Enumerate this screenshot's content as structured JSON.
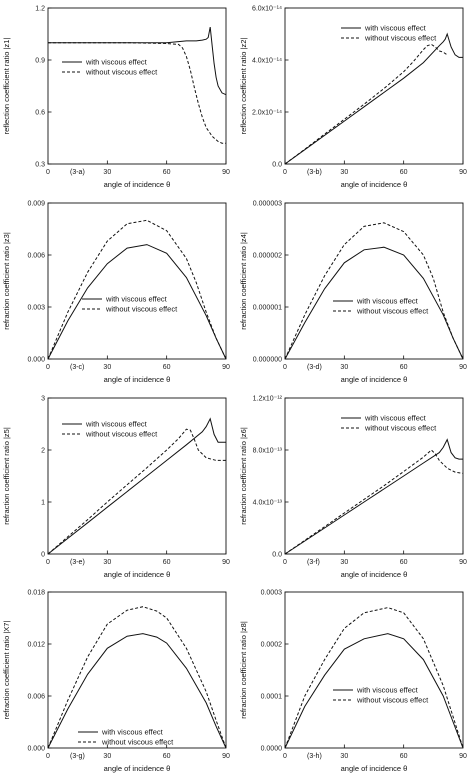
{
  "chart_data": [
    {
      "type": "line",
      "panel_label": "(3-a)",
      "xlabel": "angle of incidence θ",
      "ylabel": "reflection coefficient ratio |z1|",
      "xlim": [
        0,
        90
      ],
      "ylim": [
        0.3,
        1.2
      ],
      "xticks": [
        "0",
        "30",
        "60",
        "90"
      ],
      "yticks": [
        "0.3",
        "0.6",
        "0.9",
        "1.2"
      ],
      "legend": "center-left",
      "series": [
        {
          "name": "with viscous effect",
          "style": "solid",
          "x": [
            0,
            10,
            20,
            30,
            40,
            50,
            60,
            70,
            75,
            78,
            80,
            81,
            82,
            83,
            84,
            85,
            86,
            88,
            90
          ],
          "y": [
            1.0,
            1.0,
            1.0,
            1.0,
            1.0,
            1.0,
            1.0,
            1.01,
            1.01,
            1.015,
            1.02,
            1.03,
            1.09,
            0.98,
            0.88,
            0.8,
            0.75,
            0.71,
            0.7
          ]
        },
        {
          "name": "without viscous effect",
          "style": "dashed",
          "x": [
            0,
            20,
            40,
            60,
            66,
            68,
            70,
            72,
            74,
            76,
            78,
            80,
            83,
            86,
            88,
            90
          ],
          "y": [
            1.0,
            1.0,
            1.0,
            0.995,
            0.99,
            0.97,
            0.92,
            0.84,
            0.74,
            0.65,
            0.57,
            0.51,
            0.46,
            0.43,
            0.42,
            0.42
          ]
        }
      ]
    },
    {
      "type": "line",
      "panel_label": "(3-b)",
      "xlabel": "angle of incidence θ",
      "ylabel": "reflection coefficient ratio |z2|",
      "xlim": [
        0,
        90
      ],
      "ylim": [
        0,
        6e-14
      ],
      "xticks": [
        "0",
        "30",
        "60",
        "90"
      ],
      "yticks": [
        "0.0",
        "2.0x10⁻¹⁴",
        "4.0x10⁻¹⁴",
        "6.0x10⁻¹⁴"
      ],
      "legend": "top-right",
      "series": [
        {
          "name": "with viscous effect",
          "style": "solid",
          "x": [
            0,
            10,
            20,
            30,
            40,
            50,
            60,
            70,
            78,
            80,
            81,
            82,
            84,
            86,
            88,
            90
          ],
          "y": [
            0,
            5.5e-15,
            1.1e-14,
            1.65e-14,
            2.2e-14,
            2.75e-14,
            3.3e-14,
            3.9e-14,
            4.55e-14,
            4.7e-14,
            4.8e-14,
            5e-14,
            4.5e-14,
            4.2e-14,
            4.1e-14,
            4.1e-14
          ]
        },
        {
          "name": "without viscous effect",
          "style": "dashed",
          "x": [
            0,
            10,
            20,
            30,
            40,
            50,
            60,
            65,
            70,
            72,
            74,
            76,
            78,
            80,
            82
          ],
          "y": [
            0,
            5.7e-15,
            1.15e-14,
            1.72e-14,
            2.3e-14,
            2.9e-14,
            3.55e-14,
            3.95e-14,
            4.4e-14,
            4.55e-14,
            4.6e-14,
            4.5e-14,
            4.35e-14,
            4.3e-14,
            4.2e-14
          ]
        }
      ]
    },
    {
      "type": "line",
      "panel_label": "(3-c)",
      "xlabel": "angle of incidence θ",
      "ylabel": "refraction coefficient ratio |z3|",
      "xlim": [
        0,
        90
      ],
      "ylim": [
        0,
        0.009
      ],
      "xticks": [
        "0",
        "30",
        "60",
        "90"
      ],
      "yticks": [
        "0.000",
        "0.003",
        "0.006",
        "0.009"
      ],
      "legend": "center",
      "series": [
        {
          "name": "with viscous effect",
          "style": "solid",
          "x": [
            0,
            10,
            20,
            30,
            40,
            50,
            60,
            70,
            80,
            85,
            90
          ],
          "y": [
            0,
            0.0022,
            0.0041,
            0.0055,
            0.0064,
            0.0066,
            0.0061,
            0.0047,
            0.0025,
            0.0012,
            0
          ]
        },
        {
          "name": "without viscous effect",
          "style": "dashed",
          "x": [
            0,
            10,
            20,
            30,
            40,
            50,
            60,
            70,
            75,
            80,
            85,
            90
          ],
          "y": [
            0,
            0.0027,
            0.005,
            0.0068,
            0.0078,
            0.008,
            0.0074,
            0.0058,
            0.0044,
            0.0027,
            0.0012,
            0
          ]
        }
      ]
    },
    {
      "type": "line",
      "panel_label": "(3-d)",
      "xlabel": "angle of incidence θ",
      "ylabel": "refraction coefficient ratio |z4|",
      "xlim": [
        0,
        90
      ],
      "ylim": [
        0,
        3e-06
      ],
      "xticks": [
        "0",
        "30",
        "60",
        "90"
      ],
      "yticks": [
        "0.000000",
        "0.000001",
        "0.000002",
        "0.000003"
      ],
      "legend": "center-right",
      "series": [
        {
          "name": "with viscous effect",
          "style": "solid",
          "x": [
            0,
            10,
            20,
            30,
            40,
            50,
            60,
            70,
            80,
            85,
            90
          ],
          "y": [
            0,
            7e-07,
            1.35e-06,
            1.85e-06,
            2.1e-06,
            2.15e-06,
            2e-06,
            1.55e-06,
            8.5e-07,
            4e-07,
            0
          ]
        },
        {
          "name": "without viscous effect",
          "style": "dashed",
          "x": [
            0,
            10,
            20,
            30,
            40,
            50,
            60,
            70,
            75,
            80,
            85,
            90
          ],
          "y": [
            0,
            8.5e-07,
            1.6e-06,
            2.2e-06,
            2.55e-06,
            2.62e-06,
            2.45e-06,
            2e-06,
            1.55e-06,
            9e-07,
            4e-07,
            0
          ]
        }
      ]
    },
    {
      "type": "line",
      "panel_label": "(3-e)",
      "xlabel": "angle of incidence θ",
      "ylabel": "refraction coefficient ratio |z5|",
      "xlim": [
        0,
        90
      ],
      "ylim": [
        0,
        3
      ],
      "xticks": [
        "0",
        "30",
        "60",
        "90"
      ],
      "yticks": [
        "0",
        "1",
        "2",
        "3"
      ],
      "legend": "top-left",
      "series": [
        {
          "name": "with viscous effect",
          "style": "solid",
          "x": [
            0,
            10,
            20,
            30,
            40,
            50,
            60,
            70,
            78,
            80,
            82,
            84,
            86,
            88,
            90
          ],
          "y": [
            0,
            0.3,
            0.6,
            0.9,
            1.2,
            1.5,
            1.8,
            2.1,
            2.35,
            2.45,
            2.6,
            2.3,
            2.15,
            2.15,
            2.15
          ]
        },
        {
          "name": "without viscous effect",
          "style": "dashed",
          "x": [
            0,
            10,
            20,
            30,
            40,
            50,
            60,
            66,
            70,
            72,
            74,
            76,
            80,
            85,
            90
          ],
          "y": [
            0,
            0.33,
            0.66,
            1.0,
            1.33,
            1.66,
            2.0,
            2.22,
            2.4,
            2.38,
            2.2,
            2.0,
            1.85,
            1.8,
            1.8
          ]
        }
      ]
    },
    {
      "type": "line",
      "panel_label": "(3-f)",
      "xlabel": "angle of incidence θ",
      "ylabel": "refraction coefficient ratio |z6|",
      "xlim": [
        0,
        90
      ],
      "ylim": [
        0,
        1.2e-12
      ],
      "xticks": [
        "0",
        "30",
        "60",
        "90"
      ],
      "yticks": [
        "0.0",
        "4.0x10⁻¹³",
        "8.0x10⁻¹³",
        "1.2x10⁻¹²"
      ],
      "legend": "top-right",
      "series": [
        {
          "name": "with viscous effect",
          "style": "solid",
          "x": [
            0,
            10,
            20,
            30,
            40,
            50,
            60,
            70,
            78,
            80,
            82,
            84,
            86,
            88,
            90
          ],
          "y": [
            0,
            1e-13,
            2e-13,
            3e-13,
            4e-13,
            5e-13,
            6e-13,
            7e-13,
            7.8e-13,
            8.2e-13,
            8.8e-13,
            7.8e-13,
            7.4e-13,
            7.3e-13,
            7.3e-13
          ]
        },
        {
          "name": "without viscous effect",
          "style": "dashed",
          "x": [
            0,
            10,
            20,
            30,
            40,
            50,
            60,
            70,
            74,
            76,
            78,
            82,
            86,
            90
          ],
          "y": [
            0,
            1.05e-13,
            2.1e-13,
            3.15e-13,
            4.2e-13,
            5.25e-13,
            6.35e-13,
            7.45e-13,
            8e-13,
            7.7e-13,
            7.2e-13,
            6.6e-13,
            6.3e-13,
            6.2e-13
          ]
        }
      ]
    },
    {
      "type": "line",
      "panel_label": "(3-g)",
      "xlabel": "angle of incidence θ",
      "ylabel": "refraction coefficient ratio |X7|",
      "xlim": [
        0,
        90
      ],
      "ylim": [
        0,
        0.018
      ],
      "xticks": [
        "0",
        "30",
        "60",
        "90"
      ],
      "yticks": [
        "0.000",
        "0.006",
        "0.012",
        "0.018"
      ],
      "legend": "center-bottom",
      "series": [
        {
          "name": "with viscous effect",
          "style": "solid",
          "x": [
            0,
            10,
            20,
            30,
            40,
            48,
            55,
            60,
            70,
            80,
            85,
            90
          ],
          "y": [
            0,
            0.0045,
            0.0085,
            0.0115,
            0.0129,
            0.0132,
            0.0128,
            0.0121,
            0.0092,
            0.0052,
            0.0025,
            0
          ]
        },
        {
          "name": "without viscous effect",
          "style": "dashed",
          "x": [
            0,
            10,
            20,
            30,
            40,
            48,
            55,
            60,
            70,
            80,
            85,
            90
          ],
          "y": [
            0,
            0.0055,
            0.0105,
            0.0143,
            0.0159,
            0.0163,
            0.0158,
            0.015,
            0.0115,
            0.0065,
            0.0032,
            0
          ]
        }
      ]
    },
    {
      "type": "line",
      "panel_label": "(3-h)",
      "xlabel": "angle of incidence θ",
      "ylabel": "refraction coefficient ratio |z8|",
      "xlim": [
        0,
        90
      ],
      "ylim": [
        0,
        0.0003
      ],
      "xticks": [
        "0",
        "30",
        "60",
        "90"
      ],
      "yticks": [
        "0.0000",
        "0.0001",
        "0.0002",
        "0.0003"
      ],
      "legend": "center-right",
      "series": [
        {
          "name": "with viscous effect",
          "style": "solid",
          "x": [
            0,
            10,
            20,
            30,
            40,
            52,
            60,
            70,
            80,
            85,
            90
          ],
          "y": [
            0,
            8e-05,
            0.00014,
            0.00019,
            0.00021,
            0.00022,
            0.00021,
            0.00017,
            0.0001,
            5e-05,
            0
          ]
        },
        {
          "name": "without viscous effect",
          "style": "dashed",
          "x": [
            0,
            10,
            20,
            30,
            40,
            52,
            60,
            70,
            80,
            85,
            90
          ],
          "y": [
            0,
            0.0001,
            0.00017,
            0.00023,
            0.00026,
            0.00027,
            0.00026,
            0.00021,
            0.00012,
            6e-05,
            0
          ]
        }
      ]
    }
  ]
}
